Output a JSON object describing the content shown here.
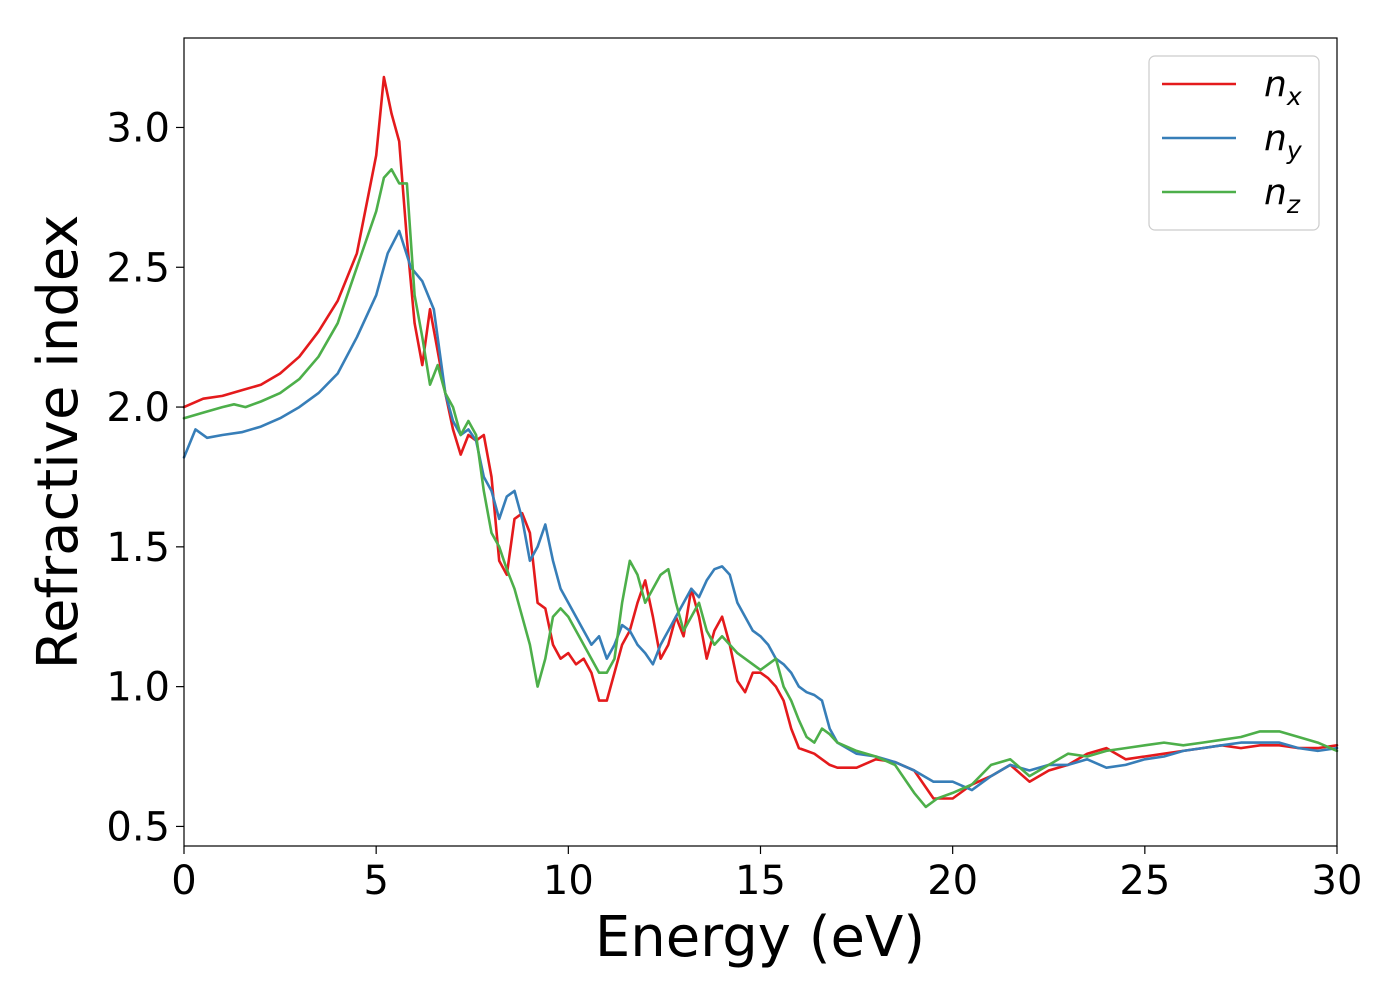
{
  "chart_data": {
    "type": "line",
    "title": "",
    "xlabel": "Energy (eV)",
    "ylabel": "Refractive index",
    "xlim": [
      0,
      30
    ],
    "ylim": [
      0.43,
      3.32
    ],
    "xticks": [
      0,
      5,
      10,
      15,
      20,
      25,
      30
    ],
    "xtick_labels": [
      "0",
      "5",
      "10",
      "15",
      "20",
      "25",
      "30"
    ],
    "yticks": [
      0.5,
      1.0,
      1.5,
      2.0,
      2.5,
      3.0
    ],
    "ytick_labels": [
      "0.5",
      "1.0",
      "1.5",
      "2.0",
      "2.5",
      "3.0"
    ],
    "grid": false,
    "legend_position": "top-right",
    "series": [
      {
        "name": "n_x",
        "label_main": "n",
        "label_sub": "x",
        "color": "#e41a1c",
        "x": [
          0,
          0.5,
          1,
          1.5,
          2,
          2.5,
          3,
          3.5,
          4,
          4.5,
          5,
          5.2,
          5.4,
          5.6,
          5.8,
          6,
          6.2,
          6.4,
          6.6,
          6.8,
          7,
          7.2,
          7.4,
          7.6,
          7.8,
          8,
          8.2,
          8.4,
          8.6,
          8.8,
          9,
          9.2,
          9.4,
          9.6,
          9.8,
          10,
          10.2,
          10.4,
          10.6,
          10.8,
          11,
          11.2,
          11.4,
          11.6,
          11.8,
          12,
          12.2,
          12.4,
          12.6,
          12.8,
          13,
          13.2,
          13.4,
          13.6,
          13.8,
          14,
          14.2,
          14.4,
          14.6,
          14.8,
          15,
          15.2,
          15.4,
          15.6,
          15.8,
          16,
          16.2,
          16.4,
          16.6,
          16.8,
          17,
          17.5,
          18,
          18.5,
          19,
          19.5,
          20,
          20.5,
          21,
          21.5,
          22,
          22.5,
          23,
          23.5,
          24,
          24.5,
          25,
          25.5,
          26,
          26.5,
          27,
          27.5,
          28,
          28.5,
          29,
          29.5,
          30
        ],
        "values": [
          2.0,
          2.03,
          2.04,
          2.06,
          2.08,
          2.12,
          2.18,
          2.27,
          2.38,
          2.55,
          2.9,
          3.18,
          3.05,
          2.95,
          2.6,
          2.3,
          2.15,
          2.35,
          2.2,
          2.05,
          1.92,
          1.83,
          1.9,
          1.88,
          1.9,
          1.75,
          1.45,
          1.4,
          1.6,
          1.62,
          1.55,
          1.3,
          1.28,
          1.15,
          1.1,
          1.12,
          1.08,
          1.1,
          1.05,
          0.95,
          0.95,
          1.05,
          1.15,
          1.2,
          1.3,
          1.38,
          1.25,
          1.1,
          1.15,
          1.25,
          1.18,
          1.35,
          1.25,
          1.1,
          1.2,
          1.25,
          1.15,
          1.02,
          0.98,
          1.05,
          1.05,
          1.03,
          1.0,
          0.95,
          0.85,
          0.78,
          0.77,
          0.76,
          0.74,
          0.72,
          0.71,
          0.71,
          0.74,
          0.73,
          0.7,
          0.6,
          0.6,
          0.65,
          0.68,
          0.72,
          0.66,
          0.7,
          0.72,
          0.76,
          0.78,
          0.74,
          0.75,
          0.76,
          0.77,
          0.78,
          0.79,
          0.78,
          0.79,
          0.79,
          0.78,
          0.78,
          0.79
        ]
      },
      {
        "name": "n_y",
        "label_main": "n",
        "label_sub": "y",
        "color": "#377eb8",
        "x": [
          0,
          0.3,
          0.6,
          1,
          1.5,
          2,
          2.5,
          3,
          3.5,
          4,
          4.5,
          5,
          5.3,
          5.6,
          5.9,
          6.2,
          6.5,
          6.8,
          7,
          7.2,
          7.4,
          7.6,
          7.8,
          8,
          8.2,
          8.4,
          8.6,
          8.8,
          9,
          9.2,
          9.4,
          9.6,
          9.8,
          10,
          10.2,
          10.4,
          10.6,
          10.8,
          11,
          11.2,
          11.4,
          11.6,
          11.8,
          12,
          12.2,
          12.4,
          12.6,
          12.8,
          13,
          13.2,
          13.4,
          13.6,
          13.8,
          14,
          14.2,
          14.4,
          14.6,
          14.8,
          15,
          15.2,
          15.4,
          15.6,
          15.8,
          16,
          16.2,
          16.4,
          16.6,
          16.8,
          17,
          17.5,
          18,
          18.5,
          19,
          19.5,
          20,
          20.5,
          21,
          21.5,
          22,
          22.5,
          23,
          23.5,
          24,
          24.5,
          25,
          25.5,
          26,
          26.5,
          27,
          27.5,
          28,
          28.5,
          29,
          29.5,
          30
        ],
        "values": [
          1.82,
          1.92,
          1.89,
          1.9,
          1.91,
          1.93,
          1.96,
          2.0,
          2.05,
          2.12,
          2.25,
          2.4,
          2.55,
          2.63,
          2.5,
          2.45,
          2.35,
          2.05,
          1.95,
          1.9,
          1.92,
          1.88,
          1.75,
          1.7,
          1.6,
          1.68,
          1.7,
          1.6,
          1.45,
          1.5,
          1.58,
          1.45,
          1.35,
          1.3,
          1.25,
          1.2,
          1.15,
          1.18,
          1.1,
          1.15,
          1.22,
          1.2,
          1.15,
          1.12,
          1.08,
          1.15,
          1.2,
          1.25,
          1.3,
          1.35,
          1.32,
          1.38,
          1.42,
          1.43,
          1.4,
          1.3,
          1.25,
          1.2,
          1.18,
          1.15,
          1.1,
          1.08,
          1.05,
          1.0,
          0.98,
          0.97,
          0.95,
          0.85,
          0.8,
          0.76,
          0.75,
          0.73,
          0.7,
          0.66,
          0.66,
          0.63,
          0.68,
          0.72,
          0.7,
          0.72,
          0.72,
          0.74,
          0.71,
          0.72,
          0.74,
          0.75,
          0.77,
          0.78,
          0.79,
          0.8,
          0.8,
          0.8,
          0.78,
          0.77,
          0.78
        ]
      },
      {
        "name": "n_z",
        "label_main": "n",
        "label_sub": "z",
        "color": "#4daf4a",
        "x": [
          0,
          0.5,
          1,
          1.3,
          1.6,
          2,
          2.5,
          3,
          3.5,
          4,
          4.5,
          5,
          5.2,
          5.4,
          5.6,
          5.8,
          6,
          6.2,
          6.4,
          6.6,
          6.8,
          7,
          7.2,
          7.4,
          7.6,
          7.8,
          8,
          8.2,
          8.4,
          8.6,
          8.8,
          9,
          9.2,
          9.4,
          9.6,
          9.8,
          10,
          10.2,
          10.4,
          10.6,
          10.8,
          11,
          11.2,
          11.4,
          11.6,
          11.8,
          12,
          12.2,
          12.4,
          12.6,
          12.8,
          13,
          13.2,
          13.4,
          13.6,
          13.8,
          14,
          14.2,
          14.4,
          14.6,
          14.8,
          15,
          15.2,
          15.4,
          15.6,
          15.8,
          16,
          16.2,
          16.4,
          16.6,
          16.8,
          17,
          17.5,
          18,
          18.5,
          19,
          19.3,
          19.6,
          20,
          20.5,
          21,
          21.5,
          22,
          22.5,
          23,
          23.5,
          24,
          24.5,
          25,
          25.5,
          26,
          26.5,
          27,
          27.5,
          28,
          28.5,
          29,
          29.5,
          30
        ],
        "values": [
          1.96,
          1.98,
          2.0,
          2.01,
          2.0,
          2.02,
          2.05,
          2.1,
          2.18,
          2.3,
          2.5,
          2.7,
          2.82,
          2.85,
          2.8,
          2.8,
          2.4,
          2.25,
          2.08,
          2.15,
          2.05,
          2.0,
          1.9,
          1.95,
          1.9,
          1.7,
          1.55,
          1.5,
          1.42,
          1.35,
          1.25,
          1.15,
          1.0,
          1.1,
          1.25,
          1.28,
          1.25,
          1.2,
          1.15,
          1.1,
          1.05,
          1.05,
          1.1,
          1.3,
          1.45,
          1.4,
          1.3,
          1.35,
          1.4,
          1.42,
          1.3,
          1.2,
          1.25,
          1.3,
          1.2,
          1.15,
          1.18,
          1.15,
          1.12,
          1.1,
          1.08,
          1.06,
          1.08,
          1.1,
          1.0,
          0.95,
          0.88,
          0.82,
          0.8,
          0.85,
          0.83,
          0.8,
          0.77,
          0.75,
          0.72,
          0.62,
          0.57,
          0.6,
          0.62,
          0.65,
          0.72,
          0.74,
          0.68,
          0.72,
          0.76,
          0.75,
          0.77,
          0.78,
          0.79,
          0.8,
          0.79,
          0.8,
          0.81,
          0.82,
          0.84,
          0.84,
          0.82,
          0.8,
          0.77
        ]
      }
    ]
  }
}
